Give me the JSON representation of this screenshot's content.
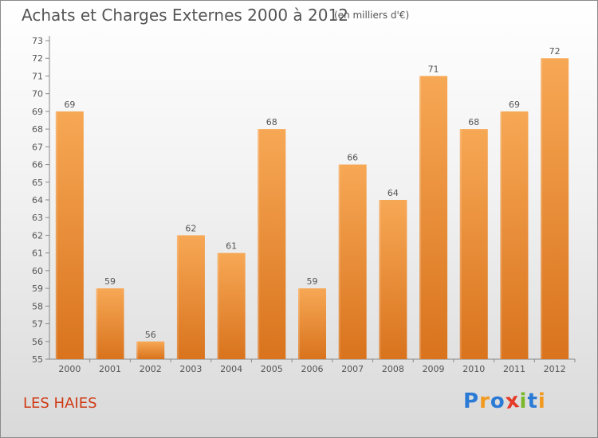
{
  "title": "Achats et Charges Externes 2000 à 2012",
  "unit_note": "(en milliers d'€)",
  "commune": "LES HAIES",
  "logo": {
    "text": "Proxiti",
    "letters": [
      {
        "char": "P",
        "color": "#2b7bd6"
      },
      {
        "char": "r",
        "color": "#f29a1f"
      },
      {
        "char": "o",
        "color": "#2b7bd6"
      },
      {
        "char": "x",
        "color": "#e53a28"
      },
      {
        "char": "i",
        "color": "#7bb82a"
      },
      {
        "char": "t",
        "color": "#2b7bd6"
      },
      {
        "char": "i",
        "color": "#f29a1f"
      }
    ]
  },
  "colors": {
    "bar_top": "#f7a855",
    "bar_bottom": "#d9731d",
    "text": "#555555",
    "commune": "#d03a14"
  },
  "chart_data": {
    "type": "bar",
    "categories": [
      "2000",
      "2001",
      "2002",
      "2003",
      "2004",
      "2005",
      "2006",
      "2007",
      "2008",
      "2009",
      "2010",
      "2011",
      "2012"
    ],
    "values": [
      69,
      59,
      56,
      62,
      61,
      68,
      59,
      66,
      64,
      71,
      68,
      69,
      72
    ],
    "ylim": [
      55,
      73
    ],
    "yticks": [
      55,
      56,
      57,
      58,
      59,
      60,
      61,
      62,
      63,
      64,
      65,
      66,
      67,
      68,
      69,
      70,
      71,
      72,
      73
    ],
    "title": "Achats et Charges Externes 2000 à 2012",
    "xlabel": "",
    "ylabel": "",
    "grid": false,
    "data_labels": true
  }
}
